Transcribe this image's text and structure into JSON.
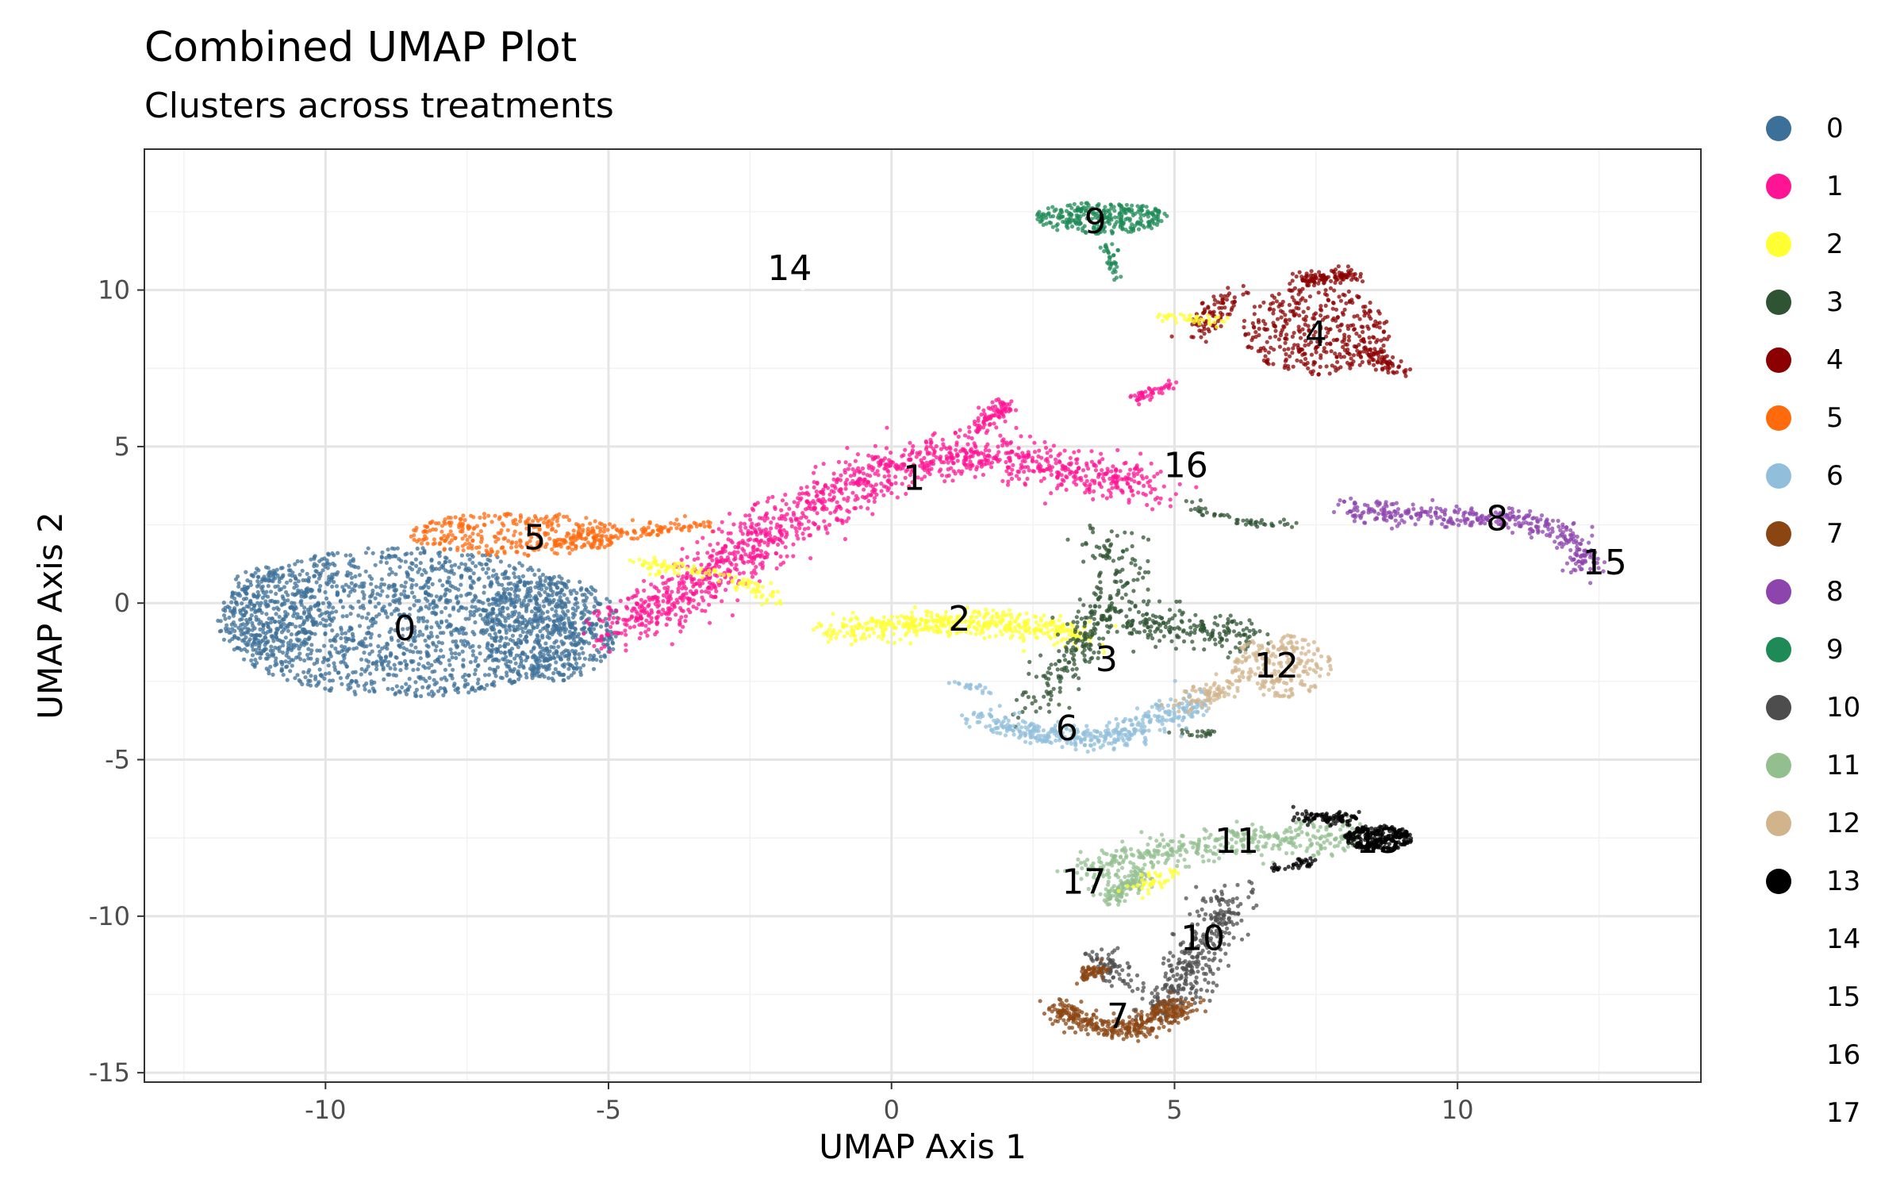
{
  "chart_data": {
    "type": "scatter",
    "title": "Combined UMAP Plot",
    "subtitle": "Clusters across treatments",
    "xlabel": "UMAP Axis 1",
    "ylabel": "UMAP Axis 2",
    "xlim": [
      -13.2,
      14.3
    ],
    "ylim": [
      -15.3,
      14.5
    ],
    "x_ticks": [
      -10,
      -5,
      0,
      5,
      10
    ],
    "y_ticks": [
      -15,
      -10,
      -5,
      0,
      5,
      10
    ],
    "x_tick_labels": [
      "-10",
      "-5",
      "0",
      "5",
      "10"
    ],
    "y_tick_labels": [
      "-15",
      "-10",
      "-5",
      "0",
      "5",
      "10"
    ],
    "grid": true,
    "legend_position": "right",
    "clusters": [
      {
        "name": "0",
        "color": "#3D7098",
        "label_pos": [
          -8.6,
          -0.8
        ]
      },
      {
        "name": "1",
        "color": "#FF1493",
        "label_pos": [
          0.4,
          4.0
        ]
      },
      {
        "name": "2",
        "color": "#FFFF33",
        "label_pos": [
          1.2,
          -0.5
        ]
      },
      {
        "name": "3",
        "color": "#2F5433",
        "label_pos": [
          3.8,
          -1.8
        ]
      },
      {
        "name": "4",
        "color": "#8B0000",
        "label_pos": [
          7.5,
          8.6
        ]
      },
      {
        "name": "5",
        "color": "#FF6A0D",
        "label_pos": [
          -6.3,
          2.1
        ]
      },
      {
        "name": "6",
        "color": "#91BFDB",
        "label_pos": [
          3.1,
          -4.0
        ]
      },
      {
        "name": "7",
        "color": "#8B4513",
        "label_pos": [
          4.0,
          -13.2
        ]
      },
      {
        "name": "8",
        "color": "#8E44AD",
        "label_pos": [
          10.7,
          2.7
        ]
      },
      {
        "name": "9",
        "color": "#1E8A55",
        "label_pos": [
          3.6,
          12.2
        ]
      },
      {
        "name": "10",
        "color": "#4D4D4D",
        "label_pos": [
          5.5,
          -10.7
        ]
      },
      {
        "name": "11",
        "color": "#93BF8F",
        "label_pos": [
          6.1,
          -7.6
        ]
      },
      {
        "name": "12",
        "color": "#D2B48C",
        "label_pos": [
          6.8,
          -2.0
        ]
      },
      {
        "name": "13",
        "color": "#000000",
        "label_pos": [
          8.6,
          -7.6
        ]
      },
      {
        "name": "14",
        "color": "#FFFFFF",
        "label_pos": [
          -1.8,
          10.7
        ]
      },
      {
        "name": "15",
        "color": "#FFFFFF",
        "label_pos": [
          12.6,
          1.3
        ]
      },
      {
        "name": "16",
        "color": "#FFFFFF",
        "label_pos": [
          5.2,
          4.4
        ]
      },
      {
        "name": "17",
        "color": "#FFFFFF",
        "label_pos": [
          3.4,
          -8.9
        ]
      }
    ],
    "shapes": [
      {
        "cluster": "0",
        "n": 2300,
        "parts": [
          {
            "type": "ellipse",
            "cx": -8.6,
            "cy": -0.6,
            "rx": 3.3,
            "ry": 2.4,
            "w": 6
          },
          {
            "type": "ellipse",
            "cx": -11.0,
            "cy": -0.3,
            "rx": 0.9,
            "ry": 1.5,
            "w": 1
          },
          {
            "type": "ellipse",
            "cx": -6.0,
            "cy": -0.8,
            "rx": 1.2,
            "ry": 1.7,
            "w": 2
          }
        ]
      },
      {
        "cluster": "5",
        "n": 450,
        "parts": [
          {
            "type": "ellipse",
            "cx": -6.6,
            "cy": 2.2,
            "rx": 1.9,
            "ry": 0.7,
            "w": 3
          },
          {
            "type": "band",
            "pts": [
              [
                -5.6,
                2.0
              ],
              [
                -4.0,
                2.4
              ],
              [
                -3.2,
                2.5
              ]
            ],
            "width": 0.3,
            "w": 1
          }
        ]
      },
      {
        "cluster": "1",
        "n": 1500,
        "parts": [
          {
            "type": "band",
            "pts": [
              [
                -5.0,
                -1.0
              ],
              [
                -3.5,
                0.5
              ],
              [
                -2.0,
                2.5
              ],
              [
                -0.5,
                4.0
              ],
              [
                1.0,
                4.8
              ],
              [
                2.5,
                4.5
              ],
              [
                4.0,
                3.9
              ],
              [
                4.6,
                3.7
              ]
            ],
            "width": 0.7,
            "w": 5
          },
          {
            "type": "band",
            "pts": [
              [
                1.5,
                5.5
              ],
              [
                2.0,
                6.4
              ]
            ],
            "width": 0.25,
            "w": 0.3
          },
          {
            "type": "band",
            "pts": [
              [
                4.3,
                6.5
              ],
              [
                4.9,
                7.0
              ]
            ],
            "width": 0.15,
            "w": 0.15
          }
        ]
      },
      {
        "cluster": "2",
        "n": 580,
        "parts": [
          {
            "type": "band",
            "pts": [
              [
                -1.0,
                -0.9
              ],
              [
                1.0,
                -0.6
              ],
              [
                2.5,
                -0.8
              ],
              [
                3.5,
                -1.1
              ]
            ],
            "width": 0.45,
            "w": 4
          },
          {
            "type": "band",
            "pts": [
              [
                -4.5,
                1.3
              ],
              [
                -3.0,
                0.9
              ],
              [
                -2.0,
                0.1
              ]
            ],
            "width": 0.25,
            "w": 1
          }
        ]
      },
      {
        "cluster": "3",
        "n": 560,
        "parts": [
          {
            "type": "band",
            "pts": [
              [
                2.5,
                -3.4
              ],
              [
                3.5,
                -1.0
              ],
              [
                4.1,
                1.2
              ],
              [
                3.7,
                2.3
              ]
            ],
            "width": 0.5,
            "w": 3
          },
          {
            "type": "band",
            "pts": [
              [
                4.0,
                -0.5
              ],
              [
                5.5,
                -0.8
              ],
              [
                6.5,
                -1.2
              ]
            ],
            "width": 0.6,
            "w": 2
          },
          {
            "type": "band",
            "pts": [
              [
                5.2,
                3.2
              ],
              [
                6.2,
                2.6
              ],
              [
                7.0,
                2.5
              ]
            ],
            "width": 0.15,
            "w": 0.5
          },
          {
            "type": "band",
            "pts": [
              [
                5.0,
                -4.1
              ],
              [
                5.7,
                -4.2
              ]
            ],
            "width": 0.15,
            "w": 0.2
          }
        ]
      },
      {
        "cluster": "6",
        "n": 430,
        "parts": [
          {
            "type": "band",
            "pts": [
              [
                1.5,
                -3.7
              ],
              [
                2.5,
                -4.2
              ],
              [
                4.0,
                -4.3
              ],
              [
                5.5,
                -3.0
              ]
            ],
            "width": 0.4,
            "w": 4
          },
          {
            "type": "band",
            "pts": [
              [
                1.0,
                -2.5
              ],
              [
                1.8,
                -2.8
              ]
            ],
            "width": 0.15,
            "w": 0.3
          }
        ]
      },
      {
        "cluster": "12",
        "n": 300,
        "parts": [
          {
            "type": "ellipse",
            "cx": 6.9,
            "cy": -2.0,
            "rx": 0.9,
            "ry": 1.0,
            "w": 3
          },
          {
            "type": "band",
            "pts": [
              [
                5.2,
                -3.2
              ],
              [
                6.0,
                -2.7
              ]
            ],
            "width": 0.4,
            "w": 1
          }
        ]
      },
      {
        "cluster": "9",
        "n": 320,
        "parts": [
          {
            "type": "ellipse",
            "cx": 3.7,
            "cy": 12.3,
            "rx": 1.2,
            "ry": 0.5,
            "w": 4
          },
          {
            "type": "band",
            "pts": [
              [
                3.8,
                11.5
              ],
              [
                4.0,
                10.2
              ]
            ],
            "width": 0.15,
            "w": 0.5
          }
        ]
      },
      {
        "cluster": "4",
        "n": 620,
        "parts": [
          {
            "type": "ellipse",
            "cx": 7.5,
            "cy": 8.7,
            "rx": 1.3,
            "ry": 1.4,
            "w": 4
          },
          {
            "type": "band",
            "pts": [
              [
                6.0,
                9.9
              ],
              [
                5.7,
                9.2
              ],
              [
                5.4,
                8.5
              ]
            ],
            "width": 0.35,
            "w": 1
          },
          {
            "type": "band",
            "pts": [
              [
                7.2,
                10.3
              ],
              [
                8.2,
                10.5
              ]
            ],
            "width": 0.25,
            "w": 1
          },
          {
            "type": "band",
            "pts": [
              [
                8.0,
                8.3
              ],
              [
                9.0,
                7.5
              ]
            ],
            "width": 0.25,
            "w": 1
          }
        ]
      },
      {
        "cluster": "8",
        "n": 380,
        "parts": [
          {
            "type": "band",
            "pts": [
              [
                8.0,
                3.0
              ],
              [
                9.5,
                2.8
              ],
              [
                11.0,
                2.7
              ],
              [
                12.0,
                2.2
              ],
              [
                12.3,
                1.1
              ]
            ],
            "width": 0.35,
            "w": 4
          }
        ]
      },
      {
        "cluster": "11",
        "n": 520,
        "parts": [
          {
            "type": "band",
            "pts": [
              [
                3.3,
                -8.6
              ],
              [
                4.5,
                -8.0
              ],
              [
                6.0,
                -7.6
              ],
              [
                7.5,
                -7.4
              ],
              [
                8.3,
                -7.6
              ]
            ],
            "width": 0.5,
            "w": 4
          },
          {
            "type": "band",
            "pts": [
              [
                3.8,
                -9.5
              ],
              [
                4.5,
                -8.6
              ]
            ],
            "width": 0.25,
            "w": 1
          }
        ]
      },
      {
        "cluster": "13",
        "n": 380,
        "parts": [
          {
            "type": "ellipse",
            "cx": 8.6,
            "cy": -7.5,
            "rx": 0.6,
            "ry": 0.4,
            "w": 3
          },
          {
            "type": "band",
            "pts": [
              [
                7.2,
                -6.8
              ],
              [
                8.2,
                -6.9
              ]
            ],
            "width": 0.2,
            "w": 1
          },
          {
            "type": "band",
            "pts": [
              [
                6.7,
                -8.5
              ],
              [
                7.5,
                -8.2
              ]
            ],
            "width": 0.15,
            "w": 0.4
          }
        ]
      },
      {
        "cluster": "10",
        "n": 420,
        "parts": [
          {
            "type": "band",
            "pts": [
              [
                6.0,
                -9.3
              ],
              [
                5.6,
                -10.7
              ],
              [
                5.2,
                -12.0
              ],
              [
                4.6,
                -13.0
              ]
            ],
            "width": 0.55,
            "w": 4
          },
          {
            "type": "band",
            "pts": [
              [
                3.6,
                -11.2
              ],
              [
                4.0,
                -12.0
              ]
            ],
            "width": 0.35,
            "w": 1
          }
        ]
      },
      {
        "cluster": "7",
        "n": 420,
        "parts": [
          {
            "type": "band",
            "pts": [
              [
                2.9,
                -12.9
              ],
              [
                3.5,
                -13.5
              ],
              [
                4.3,
                -13.6
              ],
              [
                5.2,
                -12.8
              ]
            ],
            "width": 0.35,
            "w": 4
          },
          {
            "type": "band",
            "pts": [
              [
                3.4,
                -12.0
              ],
              [
                3.7,
                -11.6
              ]
            ],
            "width": 0.2,
            "w": 0.5
          }
        ]
      },
      {
        "cluster": "2",
        "n": 40,
        "parts": [
          {
            "type": "band",
            "pts": [
              [
                4.7,
                9.2
              ],
              [
                5.8,
                9.0
              ]
            ],
            "width": 0.2,
            "w": 1
          }
        ]
      },
      {
        "cluster": "2",
        "n": 40,
        "parts": [
          {
            "type": "band",
            "pts": [
              [
                4.2,
                -9.2
              ],
              [
                5.0,
                -8.6
              ]
            ],
            "width": 0.25,
            "w": 1
          }
        ]
      },
      {
        "cluster": "14",
        "n": 8,
        "parts": [
          {
            "type": "ellipse",
            "cx": -1.5,
            "cy": 10.1,
            "rx": 0.15,
            "ry": 0.1,
            "w": 1
          }
        ]
      }
    ]
  }
}
